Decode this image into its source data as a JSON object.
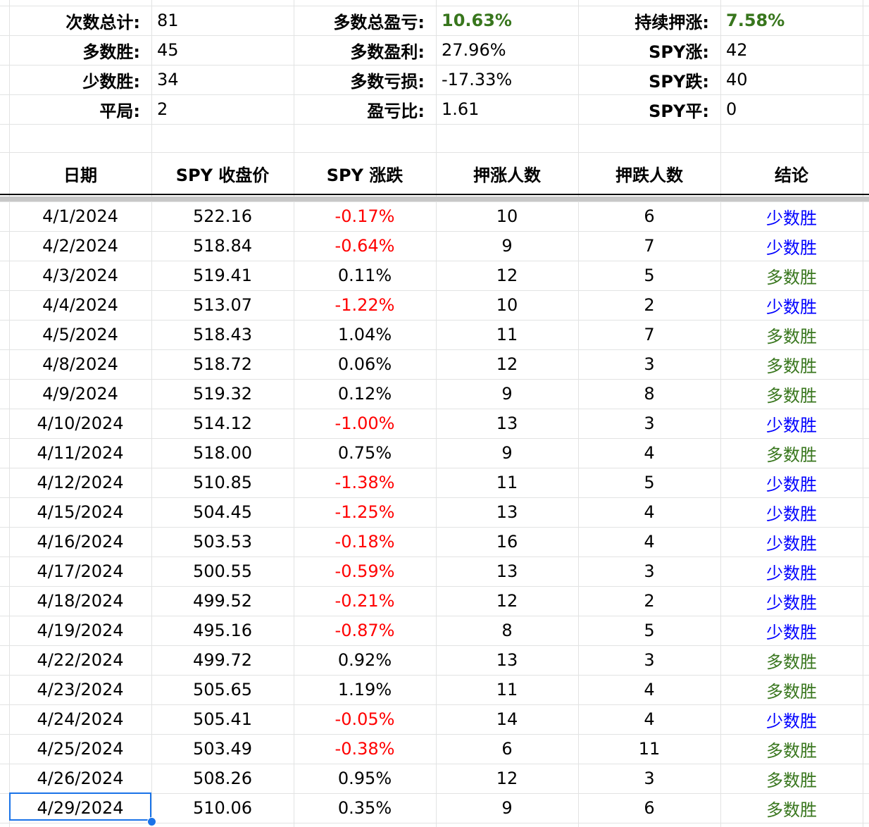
{
  "colors": {
    "positive": "#38761d",
    "negative": "#ff0000",
    "minority": "#0000ff",
    "majority": "#38761d"
  },
  "summary": [
    [
      {
        "label": "次数总计:",
        "value": "81"
      },
      {
        "label": "多数总盈亏:",
        "value": "10.63%",
        "green": true
      },
      {
        "label": "持续押涨:",
        "value": "7.58%",
        "green": true
      }
    ],
    [
      {
        "label": "多数胜:",
        "value": "45"
      },
      {
        "label": "多数盈利:",
        "value": "27.96%"
      },
      {
        "label": "SPY涨:",
        "value": "42"
      }
    ],
    [
      {
        "label": "少数胜:",
        "value": "34"
      },
      {
        "label": "多数亏损:",
        "value": "-17.33%"
      },
      {
        "label": "SPY跌:",
        "value": "40"
      }
    ],
    [
      {
        "label": "平局:",
        "value": "2"
      },
      {
        "label": "盈亏比:",
        "value": "1.61"
      },
      {
        "label": "SPY平:",
        "value": "0"
      }
    ]
  ],
  "table": {
    "headers": [
      "日期",
      "SPY 收盘价",
      "SPY 涨跌",
      "押涨人数",
      "押跌人数",
      "结论"
    ],
    "rows": [
      [
        "4/1/2024",
        "522.16",
        "-0.17%",
        "10",
        "6",
        "少数胜"
      ],
      [
        "4/2/2024",
        "518.84",
        "-0.64%",
        "9",
        "7",
        "少数胜"
      ],
      [
        "4/3/2024",
        "519.41",
        "0.11%",
        "12",
        "5",
        "多数胜"
      ],
      [
        "4/4/2024",
        "513.07",
        "-1.22%",
        "10",
        "2",
        "少数胜"
      ],
      [
        "4/5/2024",
        "518.43",
        "1.04%",
        "11",
        "7",
        "多数胜"
      ],
      [
        "4/8/2024",
        "518.72",
        "0.06%",
        "12",
        "3",
        "多数胜"
      ],
      [
        "4/9/2024",
        "519.32",
        "0.12%",
        "9",
        "8",
        "多数胜"
      ],
      [
        "4/10/2024",
        "514.12",
        "-1.00%",
        "13",
        "3",
        "少数胜"
      ],
      [
        "4/11/2024",
        "518.00",
        "0.75%",
        "9",
        "4",
        "多数胜"
      ],
      [
        "4/12/2024",
        "510.85",
        "-1.38%",
        "11",
        "5",
        "少数胜"
      ],
      [
        "4/15/2024",
        "504.45",
        "-1.25%",
        "13",
        "4",
        "少数胜"
      ],
      [
        "4/16/2024",
        "503.53",
        "-0.18%",
        "16",
        "4",
        "少数胜"
      ],
      [
        "4/17/2024",
        "500.55",
        "-0.59%",
        "13",
        "3",
        "少数胜"
      ],
      [
        "4/18/2024",
        "499.52",
        "-0.21%",
        "12",
        "2",
        "少数胜"
      ],
      [
        "4/19/2024",
        "495.16",
        "-0.87%",
        "8",
        "5",
        "少数胜"
      ],
      [
        "4/22/2024",
        "499.72",
        "0.92%",
        "13",
        "3",
        "多数胜"
      ],
      [
        "4/23/2024",
        "505.65",
        "1.19%",
        "11",
        "4",
        "多数胜"
      ],
      [
        "4/24/2024",
        "505.41",
        "-0.05%",
        "14",
        "4",
        "少数胜"
      ],
      [
        "4/25/2024",
        "503.49",
        "-0.38%",
        "6",
        "11",
        "多数胜"
      ],
      [
        "4/26/2024",
        "508.26",
        "0.95%",
        "12",
        "3",
        "多数胜"
      ],
      [
        "4/29/2024",
        "510.06",
        "0.35%",
        "9",
        "6",
        "多数胜"
      ]
    ]
  }
}
